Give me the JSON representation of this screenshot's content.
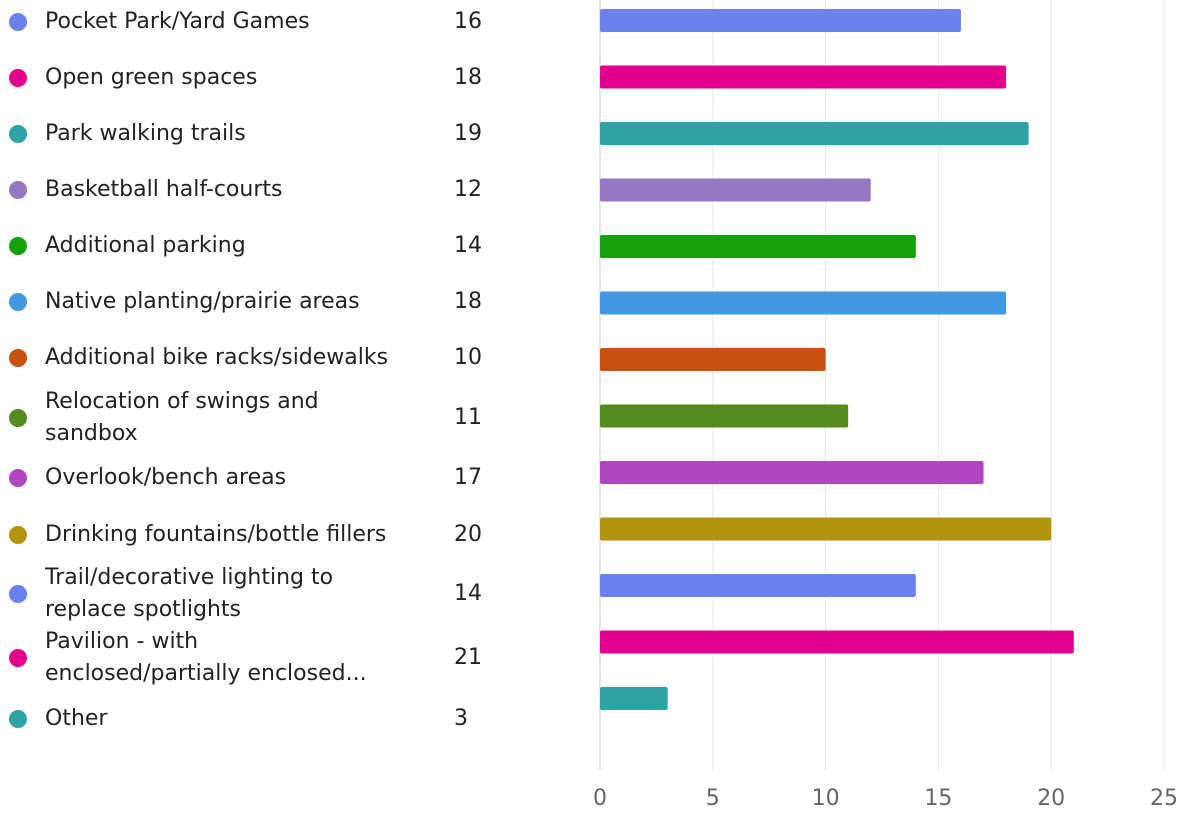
{
  "chart_data": {
    "type": "bar",
    "orientation": "horizontal",
    "categories": [
      "Pocket Park/Yard Games",
      "Open green spaces",
      "Park walking trails",
      "Basketball half-courts",
      "Additional parking",
      "Native planting/prairie areas",
      "Additional bike racks/sidewalks",
      "Relocation of swings and sandbox",
      "Overlook/bench areas",
      "Drinking fountains/bottle fillers",
      "Trail/decorative lighting to replace spotlights",
      "Pavilion - with enclosed/partially enclosed...",
      "Other"
    ],
    "values": [
      16,
      18,
      19,
      12,
      14,
      18,
      10,
      11,
      17,
      20,
      14,
      21,
      3
    ],
    "value_labels": [
      "16",
      "18",
      "19",
      "12",
      "14",
      "18",
      "10",
      "11",
      "17",
      "20",
      "14",
      "21",
      "3"
    ],
    "colors": [
      "#6b82ee",
      "#e3008c",
      "#2ea3a6",
      "#9677c1",
      "#13a10e",
      "#4299e1",
      "#ca5010",
      "#548a1e",
      "#b146c2",
      "#b3930a",
      "#6b82ee",
      "#e3008c",
      "#2ea3a6"
    ],
    "xlim": [
      0,
      25
    ],
    "x_ticks": [
      0,
      5,
      10,
      15,
      20,
      25
    ],
    "x_tick_labels": [
      "0",
      "5",
      "10",
      "15",
      "20",
      "25"
    ],
    "grid": true,
    "legend_position": "left",
    "title": "",
    "xlabel": "",
    "ylabel": ""
  }
}
